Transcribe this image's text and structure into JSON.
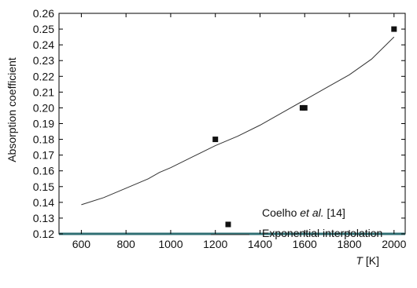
{
  "chart_data": {
    "type": "scatter",
    "xlabel_symbol": "T",
    "xlabel_unit": " [K]",
    "ylabel": "Absorption coefficient",
    "xlim": [
      500,
      2050
    ],
    "ylim": [
      0.12,
      0.26
    ],
    "x_ticks": [
      "600",
      "800",
      "1000",
      "1200",
      "1400",
      "1600",
      "1800",
      "2000"
    ],
    "y_ticks": [
      "0.12",
      "0.13",
      "0.14",
      "0.15",
      "0.16",
      "0.17",
      "0.18",
      "0.19",
      "0.20",
      "0.21",
      "0.22",
      "0.23",
      "0.24",
      "0.25",
      "0.26"
    ],
    "grid": false,
    "legend_position": "bottom-right",
    "series": [
      {
        "name_prefix": "Coelho ",
        "name_italic": "et al.",
        "name_suffix": " [14]",
        "kind": "markers",
        "marker": "square",
        "color": "#111111",
        "points": [
          [
            1200,
            0.18
          ],
          [
            1590,
            0.2
          ],
          [
            1600,
            0.2
          ],
          [
            2000,
            0.25
          ]
        ]
      },
      {
        "name": "Exponential interpolation",
        "kind": "line",
        "color": "#333333",
        "points": [
          [
            600,
            0.1385
          ],
          [
            700,
            0.143
          ],
          [
            800,
            0.149
          ],
          [
            900,
            0.155
          ],
          [
            950,
            0.159
          ],
          [
            1000,
            0.162
          ],
          [
            1100,
            0.169
          ],
          [
            1200,
            0.176
          ],
          [
            1300,
            0.182
          ],
          [
            1400,
            0.189
          ],
          [
            1500,
            0.197
          ],
          [
            1600,
            0.205
          ],
          [
            1700,
            0.213
          ],
          [
            1800,
            0.221
          ],
          [
            1900,
            0.231
          ],
          [
            2000,
            0.245
          ]
        ]
      }
    ]
  }
}
